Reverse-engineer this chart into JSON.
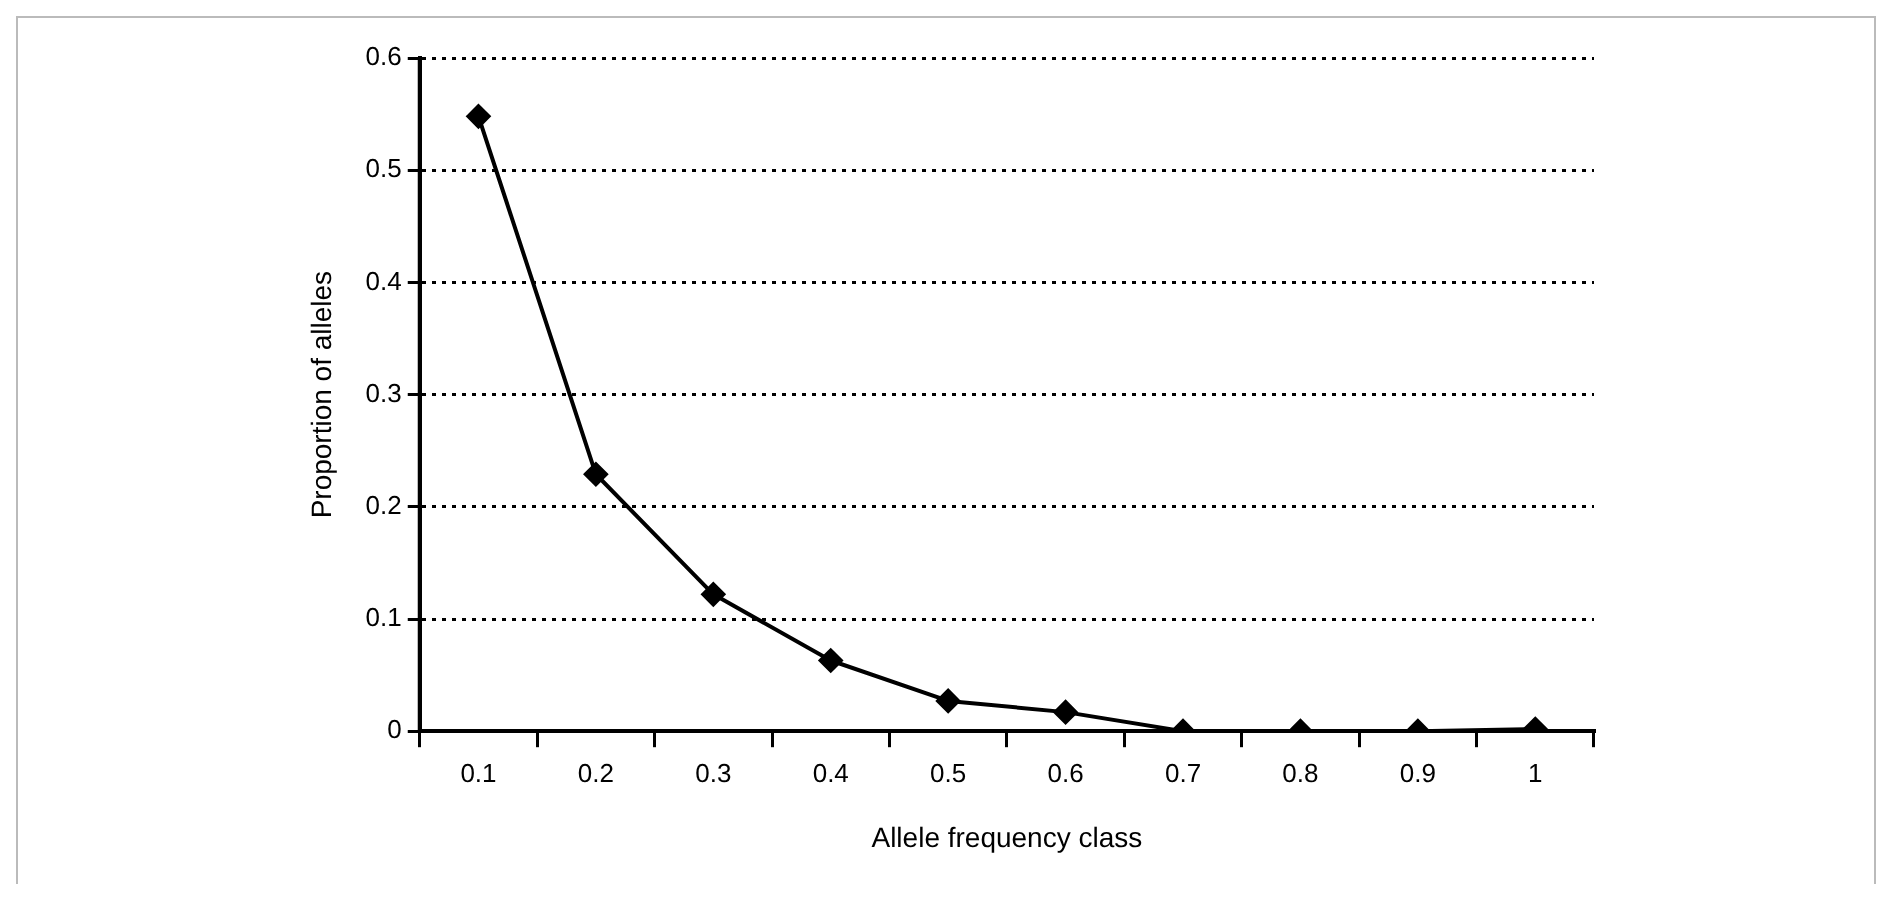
{
  "chart_data": {
    "type": "line",
    "categories": [
      "0.1",
      "0.2",
      "0.3",
      "0.4",
      "0.5",
      "0.6",
      "0.7",
      "0.8",
      "0.9",
      "1"
    ],
    "series": [
      {
        "color": "#000000",
        "values": [
          0.548,
          0.229,
          0.122,
          0.063,
          0.027,
          0.017,
          0,
          0,
          0,
          0.002
        ]
      }
    ],
    "xlabel": "Allele frequency class",
    "ylabel": "Proportion of alleles",
    "ylim": [
      0,
      0.6
    ],
    "yticks": [
      0,
      0.1,
      0.2,
      0.3,
      0.4,
      0.5,
      0.6
    ],
    "grid": "y",
    "marker": "diamond",
    "line_style": "solid",
    "legend": false
  }
}
